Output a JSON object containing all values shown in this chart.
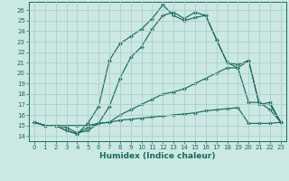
{
  "background_color": "#cce8e4",
  "grid_color": "#aacfcb",
  "line_color": "#1a6b5a",
  "xlabel": "Humidex (Indice chaleur)",
  "xlim": [
    -0.5,
    23.5
  ],
  "ylim": [
    13.5,
    26.8
  ],
  "xticks": [
    0,
    1,
    2,
    3,
    4,
    5,
    6,
    7,
    8,
    9,
    10,
    11,
    12,
    13,
    14,
    15,
    16,
    17,
    18,
    19,
    20,
    21,
    22,
    23
  ],
  "yticks": [
    14,
    15,
    16,
    17,
    18,
    19,
    20,
    21,
    22,
    23,
    24,
    25,
    26
  ],
  "line_flat_y": [
    15.3,
    15.0,
    15.0,
    15.0,
    15.0,
    15.0,
    15.2,
    15.3,
    15.5,
    15.6,
    15.7,
    15.8,
    15.9,
    16.0,
    16.1,
    16.2,
    16.4,
    16.5,
    16.6,
    16.7,
    15.2,
    15.2,
    15.2,
    15.3
  ],
  "line_low_y": [
    15.3,
    15.0,
    15.0,
    14.8,
    14.3,
    14.5,
    15.2,
    15.3,
    16.0,
    16.5,
    17.0,
    17.5,
    18.0,
    18.2,
    18.5,
    19.0,
    19.5,
    20.0,
    20.5,
    20.5,
    17.2,
    17.2,
    16.5,
    15.3
  ],
  "line_mid_y": [
    15.3,
    15.0,
    15.0,
    14.5,
    14.2,
    14.8,
    15.2,
    16.8,
    19.5,
    21.5,
    22.5,
    24.2,
    25.5,
    25.8,
    25.2,
    25.8,
    25.5,
    23.2,
    21.0,
    20.5,
    21.2,
    17.0,
    17.0,
    15.3
  ],
  "line_top_y": [
    15.3,
    15.0,
    15.0,
    14.5,
    14.2,
    15.2,
    16.8,
    21.2,
    22.8,
    23.5,
    24.2,
    25.2,
    26.5,
    25.5,
    25.0,
    25.3,
    25.5,
    23.2,
    21.0,
    20.8,
    21.2,
    17.0,
    17.2,
    15.3
  ]
}
